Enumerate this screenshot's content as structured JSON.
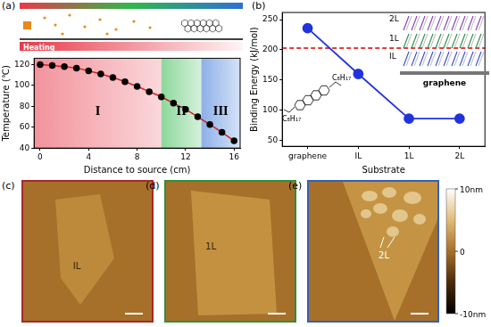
{
  "chart_data": [
    {
      "panel": "(a)",
      "type": "line",
      "x": [
        0,
        1,
        2,
        3,
        4,
        5,
        6,
        7,
        8,
        9,
        10,
        11,
        12,
        13,
        14,
        15,
        16
      ],
      "values": [
        120,
        119,
        118,
        116.5,
        114,
        111,
        107.5,
        103.5,
        99,
        94,
        89,
        83,
        77,
        70,
        62.5,
        55,
        47
      ],
      "color": "#d81e1e",
      "marker": "circle",
      "xlabel": "Distance to source (cm)",
      "ylabel": "Temperature (℃)",
      "xlim": [
        -0.5,
        16.5
      ],
      "xticks": [
        0,
        4,
        8,
        12,
        16
      ],
      "ylim": [
        40,
        126
      ],
      "yticks": [
        40,
        60,
        80,
        100,
        120
      ],
      "grid": false,
      "annotations": [
        "Heating"
      ],
      "regions": [
        {
          "label": "I",
          "from": -0.5,
          "to": 10,
          "color": "#e8394a"
        },
        {
          "label": "II",
          "from": 10,
          "to": 13.3,
          "color": "#2fb84a"
        },
        {
          "label": "III",
          "from": 13.3,
          "to": 16.5,
          "color": "#2f6fd6"
        }
      ]
    },
    {
      "panel": "(b)",
      "type": "line",
      "categories": [
        "graphene",
        "IL",
        "1L",
        "2L"
      ],
      "values": [
        236,
        160,
        86,
        86
      ],
      "color": "#2233dd",
      "marker": "circle",
      "xlabel": "Substrate",
      "ylabel": "Binding Energy (kJ/mol)",
      "ylim": [
        40,
        262
      ],
      "yticks": [
        50,
        100,
        150,
        200,
        250
      ],
      "grid": false,
      "threshold": {
        "value": 203,
        "color": "#d40000",
        "line_style": "dashed"
      },
      "inset_labels": [
        "2L",
        "1L",
        "IL",
        "graphene"
      ],
      "molecule_labels": [
        "C₈H₁₇",
        "C₈H₁₇"
      ]
    }
  ],
  "afm_images": [
    {
      "panel": "(c)",
      "label": "IL",
      "color": "#a8262a"
    },
    {
      "panel": "(d)",
      "label": "1L",
      "color": "#2d8f3c"
    },
    {
      "panel": "(e)",
      "label": "2L",
      "color": "#3461b3"
    }
  ],
  "color_bar": {
    "range": [
      -10,
      10
    ],
    "ticks": [
      {
        "value": 10,
        "label": "10nm"
      },
      {
        "value": 0,
        "label": "0"
      },
      {
        "value": -10,
        "label": "-10nm"
      }
    ]
  }
}
